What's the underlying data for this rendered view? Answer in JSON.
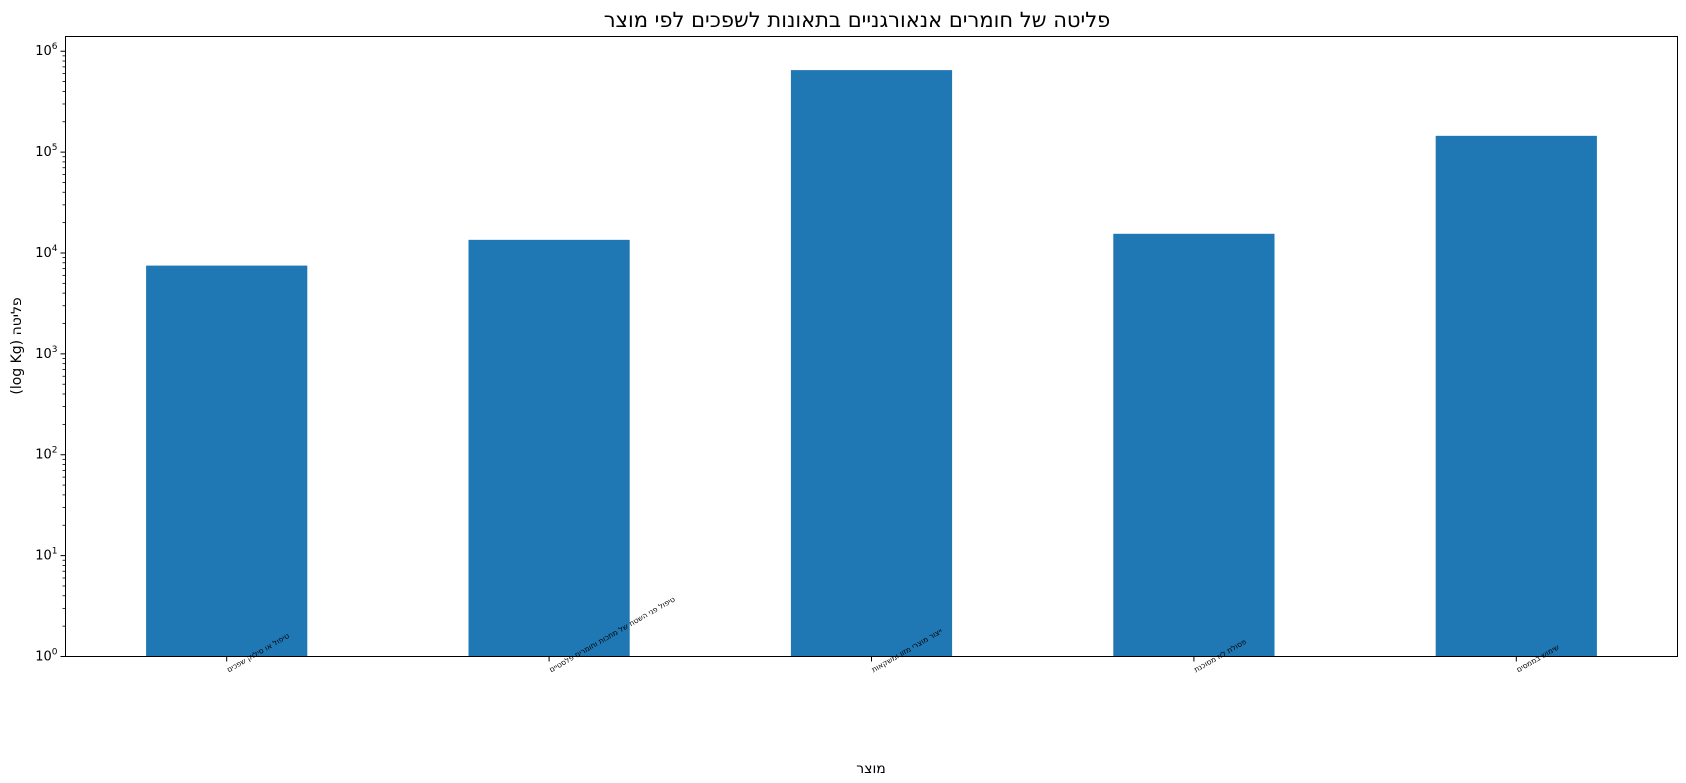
{
  "chart_data": {
    "type": "bar",
    "title": "פליטה של חומרים אנאורגניים בתאונות לשפכים לפי מוצר",
    "xlabel": "מוצר",
    "ylabel": "פליטה (log Kg)",
    "yscale": "log",
    "ylim": [
      1,
      1400000
    ],
    "ytick_values": [
      1,
      10,
      100,
      1000,
      10000,
      100000,
      1000000
    ],
    "ytick_labels": [
      {
        "base": "10",
        "exp": "0"
      },
      {
        "base": "10",
        "exp": "1"
      },
      {
        "base": "10",
        "exp": "2"
      },
      {
        "base": "10",
        "exp": "3"
      },
      {
        "base": "10",
        "exp": "4"
      },
      {
        "base": "10",
        "exp": "5"
      },
      {
        "base": "10",
        "exp": "6"
      }
    ],
    "categories": [
      "טיפול או סילוק שפכים",
      "טיפול פני השטח של מתכות וחומרים פלסטיים",
      "ייצור מוצרי מזון ומשקאות",
      "פסולת לא מסוכנת",
      "שימוש בממסים"
    ],
    "values": [
      7500,
      13500,
      650000,
      15500,
      145000
    ],
    "bar_color": "#1f77b4",
    "grid": false,
    "legend": "none"
  }
}
